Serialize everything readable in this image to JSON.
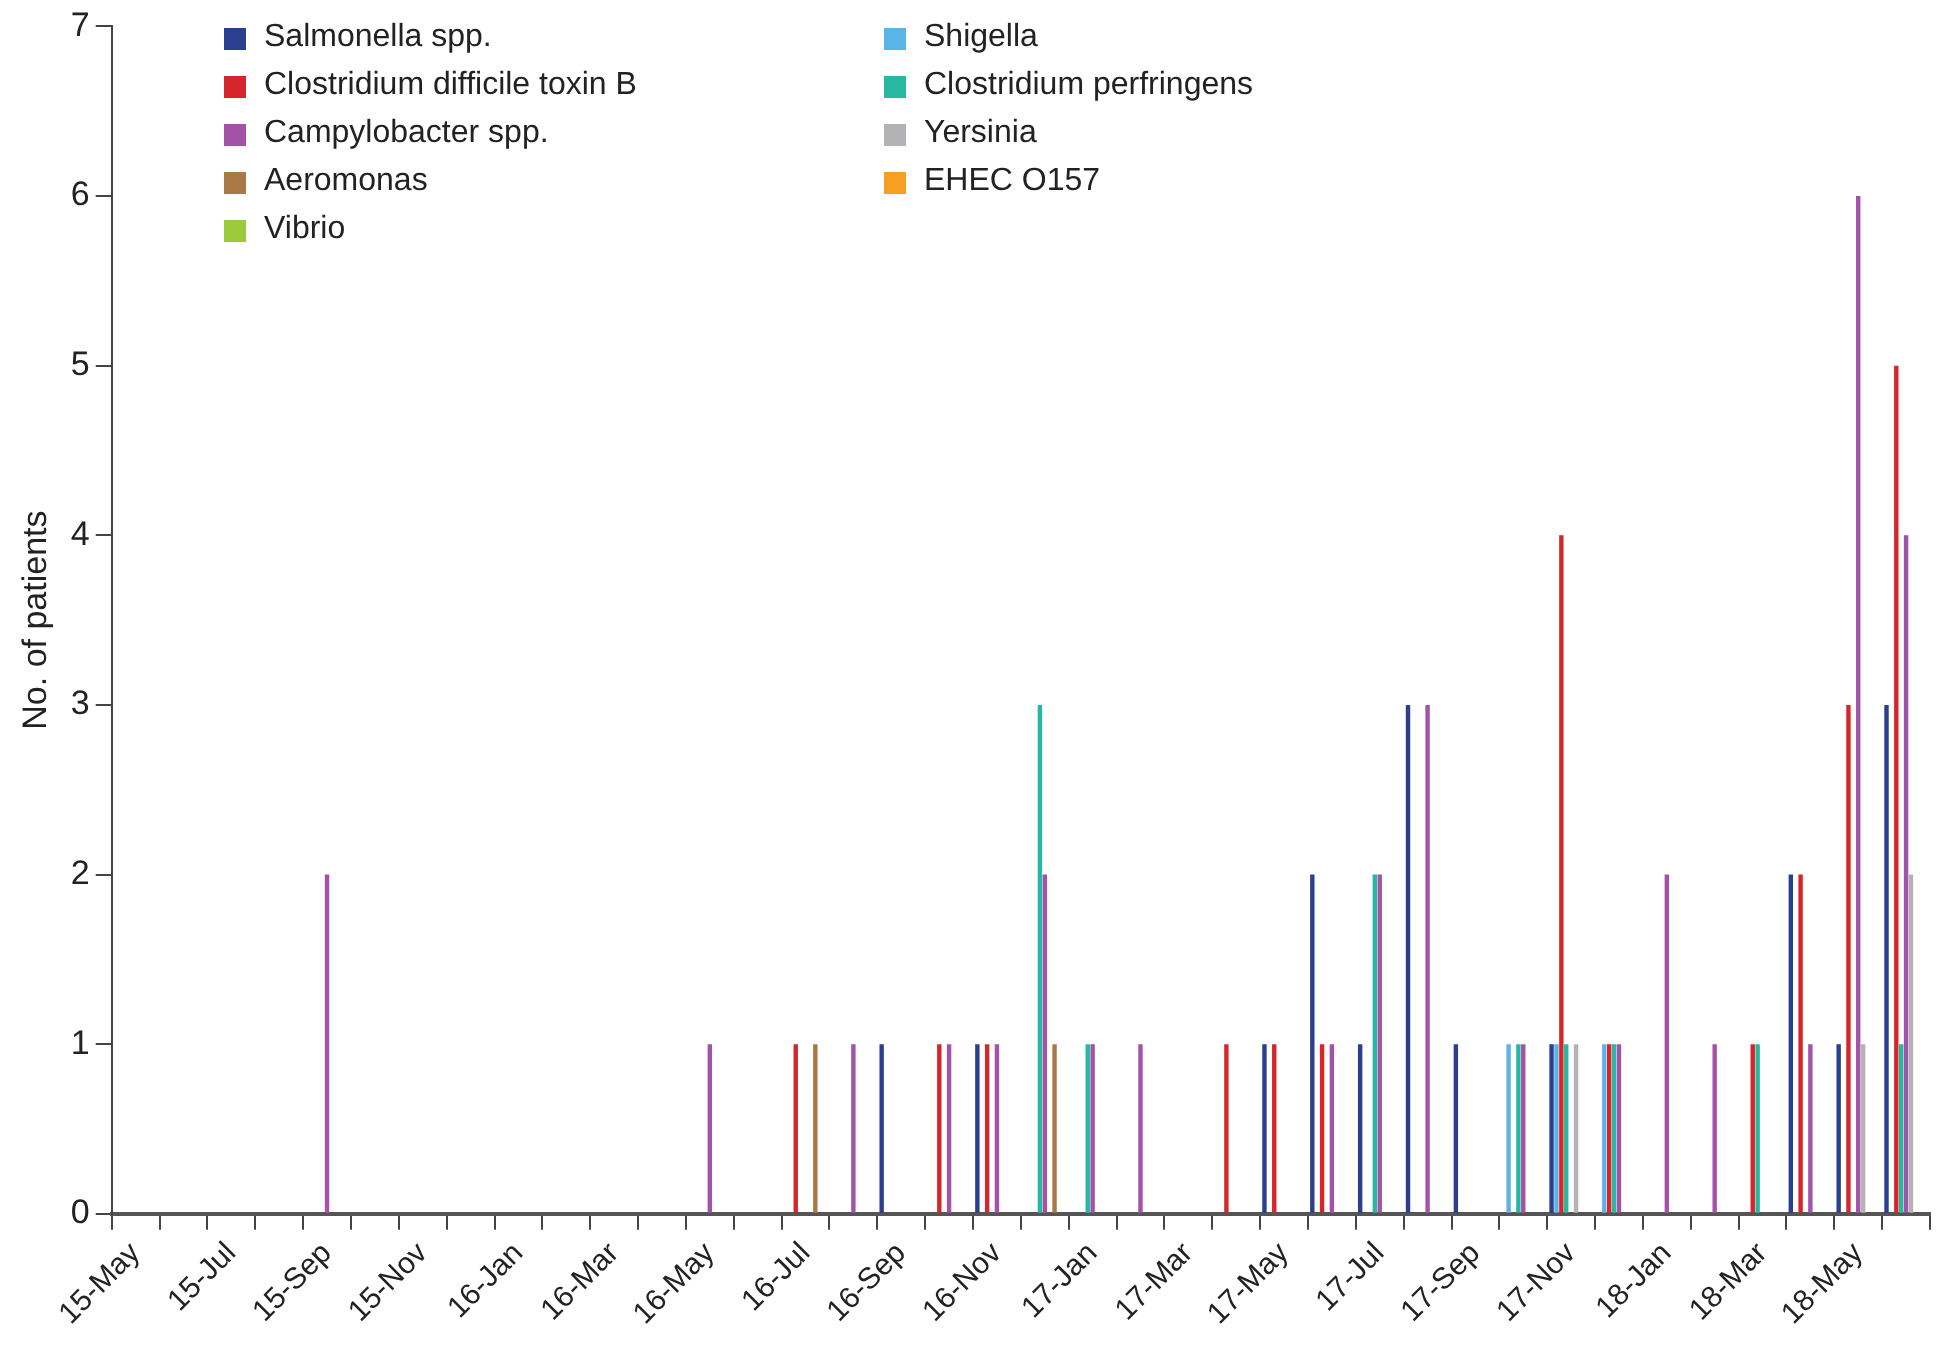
{
  "chart_data": {
    "type": "bar",
    "ylabel": "No. of patients",
    "categories": [
      "15-May",
      null,
      "15-Jul",
      null,
      "15-Sep",
      null,
      "15-Nov",
      null,
      "16-Jan",
      null,
      "16-Mar",
      null,
      "16-May",
      null,
      "16-Jul",
      null,
      "16-Sep",
      null,
      "16-Nov",
      null,
      "17-Jan",
      null,
      "17-Mar",
      null,
      "17-May",
      null,
      "17-Jul",
      null,
      "17-Sep",
      null,
      "17-Nov",
      null,
      "18-Jan",
      null,
      "18-Mar",
      null,
      "18-May",
      null
    ],
    "series": [
      {
        "name": "Salmonella spp.",
        "color": "#2b3f8f",
        "values": [
          0,
          0,
          0,
          0,
          0,
          0,
          0,
          0,
          0,
          0,
          0,
          0,
          0,
          0,
          0,
          0,
          1,
          0,
          1,
          0,
          0,
          0,
          0,
          0,
          1,
          2,
          1,
          3,
          1,
          0,
          1,
          0,
          0,
          0,
          0,
          2,
          1,
          3
        ]
      },
      {
        "name": "Shigella",
        "color": "#5ab4e5",
        "values": [
          0,
          0,
          0,
          0,
          0,
          0,
          0,
          0,
          0,
          0,
          0,
          0,
          0,
          0,
          0,
          0,
          0,
          0,
          0,
          0,
          0,
          0,
          0,
          0,
          0,
          0,
          0,
          0,
          0,
          1,
          1,
          1,
          0,
          0,
          0,
          0,
          0,
          0
        ]
      },
      {
        "name": "Clostridium difficile toxin B",
        "color": "#d7262b",
        "values": [
          0,
          0,
          0,
          0,
          0,
          0,
          0,
          0,
          0,
          0,
          0,
          0,
          0,
          0,
          1,
          0,
          0,
          1,
          1,
          0,
          0,
          0,
          0,
          1,
          1,
          1,
          0,
          0,
          0,
          0,
          4,
          1,
          0,
          0,
          1,
          2,
          3,
          5
        ]
      },
      {
        "name": "Clostridium perfringens",
        "color": "#26b8a0",
        "values": [
          0,
          0,
          0,
          0,
          0,
          0,
          0,
          0,
          0,
          0,
          0,
          0,
          0,
          0,
          0,
          0,
          0,
          0,
          0,
          3,
          1,
          0,
          0,
          0,
          0,
          0,
          2,
          0,
          0,
          1,
          1,
          1,
          0,
          0,
          1,
          0,
          0,
          1
        ]
      },
      {
        "name": "Campylobacter spp.",
        "color": "#a352a8",
        "values": [
          0,
          0,
          0,
          0,
          2,
          0,
          0,
          0,
          0,
          0,
          0,
          0,
          1,
          0,
          0,
          1,
          0,
          1,
          1,
          2,
          1,
          1,
          0,
          0,
          0,
          1,
          2,
          3,
          0,
          1,
          0,
          1,
          2,
          1,
          0,
          1,
          6,
          4
        ]
      },
      {
        "name": "Yersinia",
        "color": "#b3b3b6",
        "values": [
          0,
          0,
          0,
          0,
          0,
          0,
          0,
          0,
          0,
          0,
          0,
          0,
          0,
          0,
          0,
          0,
          0,
          0,
          0,
          0,
          0,
          0,
          0,
          0,
          0,
          0,
          0,
          0,
          0,
          0,
          1,
          0,
          0,
          0,
          0,
          0,
          1,
          2
        ]
      },
      {
        "name": "Aeromonas",
        "color": "#a87947",
        "values": [
          0,
          0,
          0,
          0,
          0,
          0,
          0,
          0,
          0,
          0,
          0,
          0,
          0,
          0,
          1,
          0,
          0,
          0,
          0,
          1,
          0,
          0,
          0,
          0,
          0,
          0,
          0,
          0,
          0,
          0,
          0,
          0,
          0,
          0,
          0,
          0,
          0,
          0
        ]
      },
      {
        "name": "EHEC O157",
        "color": "#f5a023",
        "values": [
          0,
          0,
          0,
          0,
          0,
          0,
          0,
          0,
          0,
          0,
          0,
          0,
          0,
          0,
          0,
          0,
          0,
          0,
          0,
          0,
          0,
          0,
          0,
          0,
          0,
          0,
          0,
          0,
          0,
          0,
          0,
          0,
          0,
          0,
          0,
          0,
          0,
          0
        ]
      },
      {
        "name": "Vibrio",
        "color": "#9bcb3c",
        "values": [
          0,
          0,
          0,
          0,
          0,
          0,
          0,
          0,
          0,
          0,
          0,
          0,
          0,
          0,
          0,
          0,
          0,
          0,
          0,
          0,
          0,
          0,
          0,
          0,
          0,
          0,
          0,
          0,
          0,
          0,
          0,
          0,
          0,
          0,
          0,
          0,
          0,
          0
        ]
      }
    ],
    "ylim": [
      0,
      7
    ],
    "yticks": [
      0,
      1,
      2,
      3,
      4,
      5,
      6,
      7
    ],
    "grid": false,
    "legend": "top left"
  }
}
